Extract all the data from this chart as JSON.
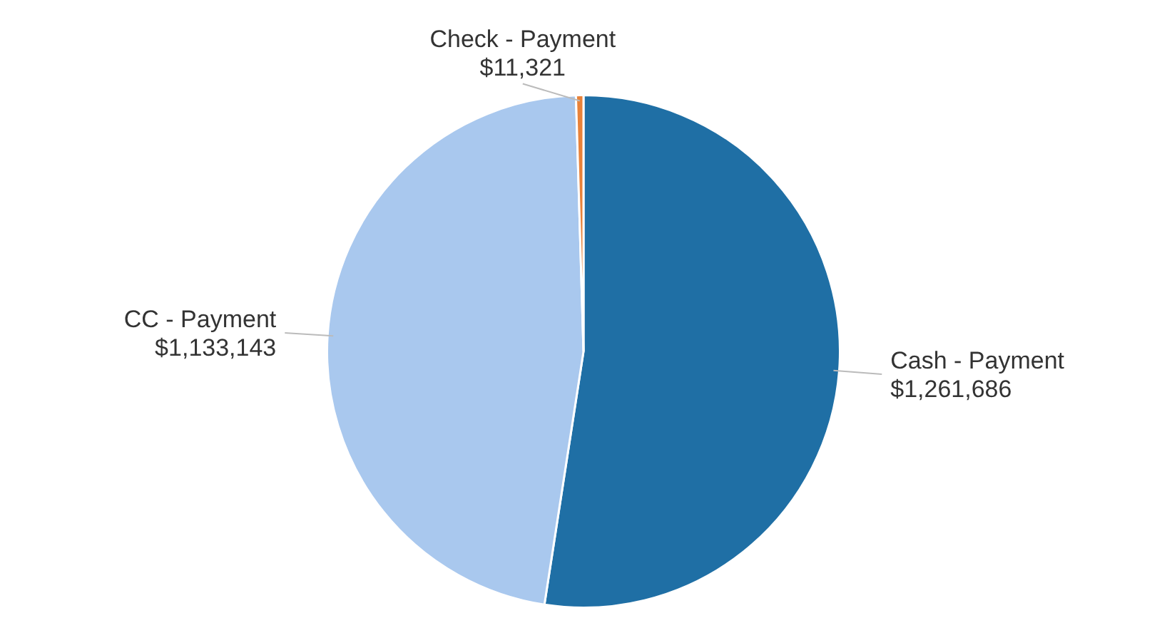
{
  "chart_data": {
    "type": "pie",
    "categories": [
      "Cash - Payment",
      "CC - Payment",
      "Check - Payment"
    ],
    "values": [
      1261686,
      1133143,
      11321
    ],
    "colors": [
      "#1f6fa5",
      "#a9c8ee",
      "#e8823a"
    ],
    "value_labels": [
      "$1,261,686",
      "$1,133,143",
      "$11,321"
    ],
    "legend": false
  }
}
